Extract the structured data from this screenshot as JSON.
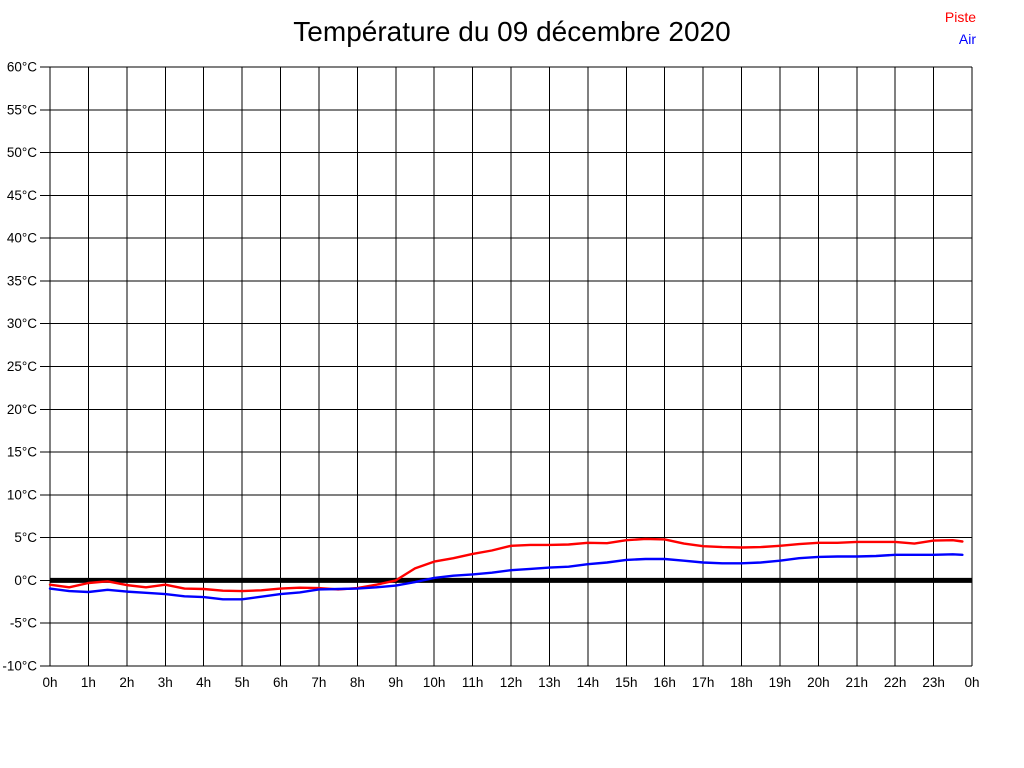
{
  "page": {
    "background_color": "#ffffff"
  },
  "chart_data": {
    "type": "line",
    "title": "Température du 09 décembre 2020",
    "xlabel": "",
    "ylabel": "",
    "x_unit": "hour of day",
    "y_unit": "°C",
    "xlim": [
      0,
      24
    ],
    "ylim": [
      -10,
      60
    ],
    "y_tick_step": 5,
    "x_tick_step_hours": 1,
    "grid": true,
    "grid_color": "#000000",
    "axis_color": "#000000",
    "legend_position": "top-right",
    "x_tick_labels": [
      "0h",
      "1h",
      "2h",
      "3h",
      "4h",
      "5h",
      "6h",
      "7h",
      "8h",
      "9h",
      "10h",
      "11h",
      "12h",
      "13h",
      "14h",
      "15h",
      "16h",
      "17h",
      "18h",
      "19h",
      "20h",
      "21h",
      "22h",
      "23h",
      "0h"
    ],
    "y_tick_labels": [
      "60°C",
      "55°C",
      "50°C",
      "45°C",
      "40°C",
      "35°C",
      "30°C",
      "25°C",
      "20°C",
      "15°C",
      "10°C",
      "5°C",
      "0°C",
      "-5°C",
      "-10°C"
    ],
    "zero_line": {
      "value": 0,
      "color": "#000000",
      "thickness": 5
    },
    "series": [
      {
        "name": "Piste",
        "color": "#ff0000",
        "points": [
          [
            0,
            -0.5
          ],
          [
            0.5,
            -0.8
          ],
          [
            1,
            -0.3
          ],
          [
            1.5,
            -0.1
          ],
          [
            2,
            -0.55
          ],
          [
            2.5,
            -0.8
          ],
          [
            3,
            -0.5
          ],
          [
            3.5,
            -0.95
          ],
          [
            4,
            -1.0
          ],
          [
            4.5,
            -1.2
          ],
          [
            5,
            -1.25
          ],
          [
            5.5,
            -1.15
          ],
          [
            6,
            -0.95
          ],
          [
            6.5,
            -0.85
          ],
          [
            7,
            -0.9
          ],
          [
            7.5,
            -1.05
          ],
          [
            8,
            -0.9
          ],
          [
            8.5,
            -0.5
          ],
          [
            9,
            0.0
          ],
          [
            9.5,
            1.4
          ],
          [
            10,
            2.2
          ],
          [
            10.5,
            2.6
          ],
          [
            11,
            3.1
          ],
          [
            11.5,
            3.5
          ],
          [
            12,
            4.05
          ],
          [
            12.5,
            4.15
          ],
          [
            13,
            4.15
          ],
          [
            13.5,
            4.2
          ],
          [
            14,
            4.4
          ],
          [
            14.5,
            4.35
          ],
          [
            15,
            4.7
          ],
          [
            15.5,
            4.85
          ],
          [
            16,
            4.8
          ],
          [
            16.5,
            4.3
          ],
          [
            17,
            4.0
          ],
          [
            17.5,
            3.9
          ],
          [
            18,
            3.85
          ],
          [
            18.5,
            3.9
          ],
          [
            19,
            4.05
          ],
          [
            19.5,
            4.25
          ],
          [
            20,
            4.4
          ],
          [
            20.5,
            4.4
          ],
          [
            21,
            4.5
          ],
          [
            21.5,
            4.5
          ],
          [
            22,
            4.5
          ],
          [
            22.5,
            4.3
          ],
          [
            23,
            4.65
          ],
          [
            23.5,
            4.7
          ],
          [
            23.75,
            4.55
          ]
        ]
      },
      {
        "name": "Air",
        "color": "#0000ff",
        "points": [
          [
            0,
            -0.95
          ],
          [
            0.5,
            -1.25
          ],
          [
            1,
            -1.35
          ],
          [
            1.5,
            -1.1
          ],
          [
            2,
            -1.3
          ],
          [
            2.5,
            -1.45
          ],
          [
            3,
            -1.6
          ],
          [
            3.5,
            -1.85
          ],
          [
            4,
            -1.95
          ],
          [
            4.5,
            -2.2
          ],
          [
            5,
            -2.2
          ],
          [
            5.5,
            -1.9
          ],
          [
            6,
            -1.6
          ],
          [
            6.5,
            -1.4
          ],
          [
            7,
            -1.05
          ],
          [
            7.5,
            -1.0
          ],
          [
            8,
            -0.95
          ],
          [
            8.5,
            -0.8
          ],
          [
            9,
            -0.6
          ],
          [
            9.5,
            -0.2
          ],
          [
            10,
            0.3
          ],
          [
            10.5,
            0.55
          ],
          [
            11,
            0.7
          ],
          [
            11.5,
            0.9
          ],
          [
            12,
            1.2
          ],
          [
            12.5,
            1.35
          ],
          [
            13,
            1.5
          ],
          [
            13.5,
            1.6
          ],
          [
            14,
            1.9
          ],
          [
            14.5,
            2.1
          ],
          [
            15,
            2.4
          ],
          [
            15.5,
            2.5
          ],
          [
            16,
            2.5
          ],
          [
            16.5,
            2.3
          ],
          [
            17,
            2.1
          ],
          [
            17.5,
            2.0
          ],
          [
            18,
            2.0
          ],
          [
            18.5,
            2.1
          ],
          [
            19,
            2.3
          ],
          [
            19.5,
            2.6
          ],
          [
            20,
            2.75
          ],
          [
            20.5,
            2.8
          ],
          [
            21,
            2.8
          ],
          [
            21.5,
            2.85
          ],
          [
            22,
            3.0
          ],
          [
            22.5,
            3.0
          ],
          [
            23,
            3.0
          ],
          [
            23.5,
            3.05
          ],
          [
            23.75,
            3.0
          ]
        ]
      }
    ]
  }
}
